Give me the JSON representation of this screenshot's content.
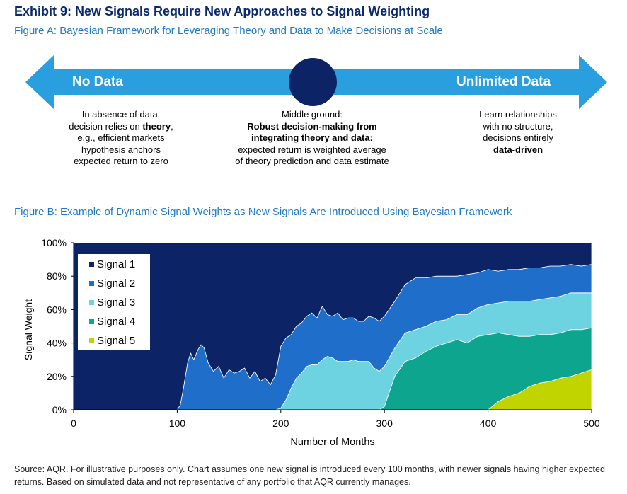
{
  "exhibit_title": "Exhibit 9: New Signals Require New Approaches to Signal Weighting",
  "figure_a": {
    "title": "Figure A: Bayesian Framework for Leveraging Theory and Data to Make Decisions at Scale",
    "left_label": "No Data",
    "right_label": "Unlimited Data",
    "left_desc": [
      "In absence of data,",
      "decision relies on ",
      "theory",
      ",",
      "e.g., efficient markets",
      "hypothesis anchors",
      "expected return to zero"
    ],
    "middle_desc": [
      "Middle ground:",
      "Robust decision-making from",
      "integrating theory and data:",
      "expected return is weighted average",
      "of theory prediction and data estimate"
    ],
    "right_desc": [
      "Learn relationships",
      "with no structure,",
      "decisions entirely",
      "data-driven"
    ],
    "colors": {
      "arrow": "#2a9fe0",
      "circle": "#0c2466"
    }
  },
  "figure_b": {
    "title": "Figure B: Example of Dynamic Signal Weights as New Signals Are Introduced Using Bayesian Framework"
  },
  "chart_data": {
    "type": "area",
    "stacked": true,
    "xlabel": "Number of Months",
    "ylabel": "Signal Weight",
    "xlim": [
      0,
      500
    ],
    "ylim": [
      0,
      100
    ],
    "xticks": [
      "0",
      "100",
      "200",
      "300",
      "400",
      "500"
    ],
    "yticks": [
      "0%",
      "20%",
      "40%",
      "60%",
      "80%",
      "100%"
    ],
    "legend_position": "top-left",
    "boundaries_note": "cumulative weight of signals 2-5 (boundary 1/2), 3-5, 4-5, 5",
    "x": [
      0,
      100,
      103,
      106,
      110,
      113,
      116,
      120,
      123,
      126,
      130,
      135,
      140,
      145,
      150,
      155,
      160,
      165,
      170,
      175,
      180,
      185,
      190,
      195,
      200,
      205,
      210,
      215,
      220,
      225,
      230,
      235,
      240,
      245,
      250,
      255,
      260,
      265,
      270,
      275,
      280,
      285,
      290,
      295,
      300,
      310,
      320,
      330,
      340,
      350,
      360,
      370,
      380,
      390,
      400,
      410,
      420,
      430,
      440,
      450,
      460,
      470,
      480,
      490,
      500
    ],
    "series": [
      {
        "name": "Signal 1",
        "color": "#0c2466",
        "values": [
          100,
          100,
          97,
          87,
          72,
          66,
          70,
          64,
          61,
          63,
          72,
          77,
          74,
          81,
          76,
          78,
          77,
          75,
          81,
          77,
          83,
          81,
          85,
          79,
          62,
          57,
          55,
          50,
          48,
          44,
          42,
          45,
          38,
          43,
          44,
          42,
          46,
          45,
          45,
          47,
          47,
          44,
          45,
          47,
          44,
          35,
          25,
          21,
          21,
          20,
          20,
          20,
          19,
          18,
          16,
          17,
          16,
          16,
          15,
          15,
          14,
          14,
          13,
          14,
          13
        ]
      },
      {
        "name": "Signal 2",
        "color": "#1f6fca",
        "values": [
          0,
          0,
          3,
          13,
          28,
          34,
          30,
          36,
          39,
          37,
          28,
          23,
          26,
          19,
          24,
          22,
          23,
          25,
          19,
          23,
          17,
          19,
          15,
          21,
          37,
          37,
          32,
          31,
          30,
          30,
          31,
          28,
          32,
          25,
          25,
          29,
          25,
          26,
          25,
          24,
          24,
          27,
          30,
          30,
          30,
          28,
          29,
          31,
          29,
          27,
          26,
          23,
          24,
          21,
          21,
          19,
          19,
          19,
          20,
          19,
          19,
          18,
          17,
          16,
          17
        ]
      },
      {
        "name": "Signal 3",
        "color": "#6dd3e0",
        "values": [
          0,
          0,
          0,
          0,
          0,
          0,
          0,
          0,
          0,
          0,
          0,
          0,
          0,
          0,
          0,
          0,
          0,
          0,
          0,
          0,
          0,
          0,
          0,
          0,
          1,
          6,
          13,
          19,
          22,
          26,
          27,
          27,
          30,
          32,
          31,
          29,
          29,
          29,
          30,
          29,
          29,
          29,
          25,
          23,
          24,
          17,
          17,
          17,
          15,
          15,
          14,
          15,
          17,
          17,
          18,
          18,
          20,
          21,
          21,
          21,
          22,
          22,
          22,
          22,
          21
        ]
      },
      {
        "name": "Signal 4",
        "color": "#0ea58f",
        "values": [
          0,
          0,
          0,
          0,
          0,
          0,
          0,
          0,
          0,
          0,
          0,
          0,
          0,
          0,
          0,
          0,
          0,
          0,
          0,
          0,
          0,
          0,
          0,
          0,
          0,
          0,
          0,
          0,
          0,
          0,
          0,
          0,
          0,
          0,
          0,
          0,
          0,
          0,
          0,
          0,
          0,
          0,
          0,
          0,
          2,
          20,
          29,
          31,
          35,
          38,
          40,
          42,
          40,
          44,
          45,
          41,
          37,
          34,
          30,
          29,
          28,
          27,
          28,
          26,
          25
        ]
      },
      {
        "name": "Signal 5",
        "color": "#c2d400",
        "values": [
          0,
          0,
          0,
          0,
          0,
          0,
          0,
          0,
          0,
          0,
          0,
          0,
          0,
          0,
          0,
          0,
          0,
          0,
          0,
          0,
          0,
          0,
          0,
          0,
          0,
          0,
          0,
          0,
          0,
          0,
          0,
          0,
          0,
          0,
          0,
          0,
          0,
          0,
          0,
          0,
          0,
          0,
          0,
          0,
          0,
          0,
          0,
          0,
          0,
          0,
          0,
          0,
          0,
          0,
          0,
          5,
          8,
          10,
          14,
          16,
          17,
          19,
          20,
          22,
          24
        ]
      }
    ]
  },
  "source": "Source: AQR. For illustrative purposes only. Chart assumes one new signal is introduced every 100 months, with newer signals having higher expected returns. Based on simulated data and not representative of any portfolio that AQR currently manages."
}
